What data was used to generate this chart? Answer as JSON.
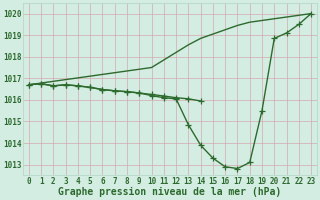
{
  "hours": [
    0,
    1,
    2,
    3,
    4,
    5,
    6,
    7,
    8,
    9,
    10,
    11,
    12,
    13,
    14,
    15,
    16,
    17,
    18,
    19,
    20,
    21,
    22,
    23
  ],
  "upper_line": {
    "x": [
      0,
      10,
      11,
      12,
      13,
      14,
      15,
      16,
      17,
      18,
      23
    ],
    "y": [
      1016.7,
      1017.5,
      1017.85,
      1018.2,
      1018.55,
      1018.85,
      1019.05,
      1019.25,
      1019.45,
      1019.6,
      1020.0
    ]
  },
  "lower_line": {
    "x": [
      0,
      1,
      2,
      3,
      4,
      5,
      6,
      7,
      8,
      9,
      10,
      11,
      12,
      13,
      14,
      15,
      16,
      17,
      18,
      19,
      20,
      21,
      22,
      23
    ],
    "y": [
      1016.7,
      1016.75,
      1016.65,
      1016.7,
      1016.65,
      1016.58,
      1016.48,
      1016.42,
      1016.38,
      1016.32,
      1016.2,
      1016.1,
      1016.05,
      1014.85,
      1013.9,
      1013.3,
      1012.9,
      1012.82,
      1013.1,
      1015.5,
      1018.85,
      1019.1,
      1019.5,
      1020.0
    ]
  },
  "flat_line": {
    "x": [
      0,
      1,
      2,
      3,
      4,
      5,
      6,
      7,
      8,
      9,
      10,
      11,
      12,
      13,
      14
    ],
    "y": [
      1016.7,
      1016.75,
      1016.65,
      1016.7,
      1016.65,
      1016.58,
      1016.48,
      1016.42,
      1016.38,
      1016.32,
      1016.25,
      1016.18,
      1016.1,
      1016.05,
      1015.95
    ]
  },
  "bg_color": "#d4ede3",
  "grid_color_major": "#b8d8cc",
  "grid_color_minor": "#c8e4da",
  "line_color": "#2d6a2d",
  "marker": "+",
  "markersize": 4,
  "linewidth": 1.0,
  "ylim": [
    1012.5,
    1020.5
  ],
  "yticks": [
    1013,
    1014,
    1015,
    1016,
    1017,
    1018,
    1019,
    1020
  ],
  "xlim": [
    -0.5,
    23.5
  ],
  "xlabel": "Graphe pression niveau de la mer (hPa)",
  "xlabel_fontsize": 7,
  "tick_fontsize": 5.5
}
